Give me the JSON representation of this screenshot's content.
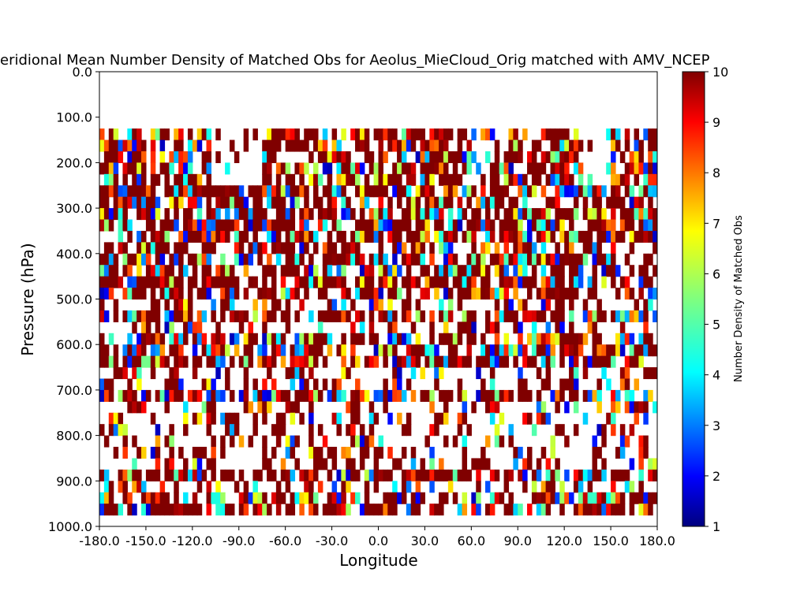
{
  "chart_data": {
    "type": "heatmap",
    "title": "eridional Mean Number Density of Matched Obs for Aeolus_MieCloud_Orig matched with AMV_NCEP",
    "xlabel": "Longitude",
    "ylabel": "Pressure (hPa)",
    "xlim": [
      -180,
      180
    ],
    "ylim": [
      1000,
      0
    ],
    "xticks": [
      "-180.0",
      "-150.0",
      "-120.0",
      "-90.0",
      "-60.0",
      "-30.0",
      "0.0",
      "30.0",
      "60.0",
      "90.0",
      "120.0",
      "150.0",
      "180.0"
    ],
    "yticks": [
      "0.0",
      "100.0",
      "200.0",
      "300.0",
      "400.0",
      "500.0",
      "600.0",
      "700.0",
      "800.0",
      "900.0",
      "1000.0"
    ],
    "colorbar": {
      "label": "Number Density of Matched Obs",
      "min": 1,
      "max": 10,
      "ticks": [
        "1",
        "2",
        "3",
        "4",
        "5",
        "6",
        "7",
        "8",
        "9",
        "10"
      ],
      "colormap": "jet"
    },
    "data_extent": {
      "lon": [
        -180,
        180
      ],
      "pressure": [
        125,
        975
      ]
    },
    "colors": {
      "high": "#800000",
      "mid": "#ffff00",
      "low": "#00007f"
    }
  }
}
